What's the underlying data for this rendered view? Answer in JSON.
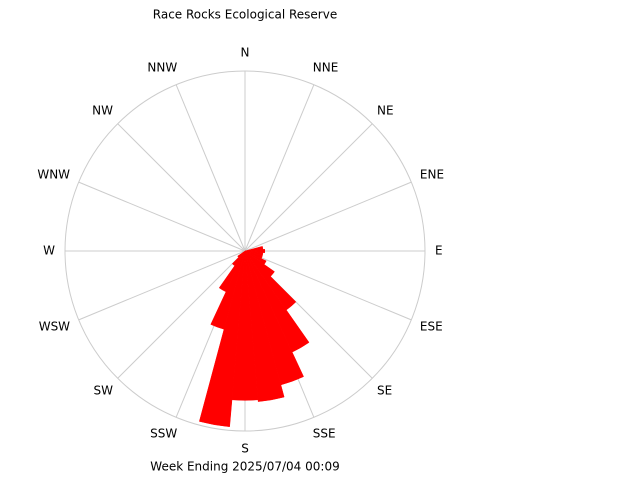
{
  "chart_data": {
    "type": "windrose",
    "title": "Race Rocks Ecological Reserve",
    "footer": "Week Ending 2025/07/04 00:09",
    "directions": [
      "N",
      "NNE",
      "NE",
      "ENE",
      "E",
      "ESE",
      "SE",
      "SSE",
      "S",
      "SSW",
      "SW",
      "WSW",
      "W",
      "WNW",
      "NW",
      "NNW"
    ],
    "x": [
      0,
      10,
      20,
      30,
      40,
      50,
      60,
      70,
      80,
      90,
      100,
      110,
      120,
      130,
      140,
      150,
      160,
      170,
      180,
      190,
      200,
      210,
      220,
      230,
      240,
      250,
      260,
      270,
      280,
      290,
      300,
      310,
      320,
      330,
      340,
      350
    ],
    "values": [
      0,
      0,
      0,
      0,
      0,
      0,
      0,
      0,
      10,
      11,
      10,
      10,
      13,
      20,
      40,
      62,
      77,
      84,
      83,
      98,
      45,
      25,
      10,
      5,
      0,
      0,
      0,
      0,
      0,
      0,
      0,
      0,
      0,
      0,
      0,
      0
    ],
    "color": "#ff0000",
    "rlim": [
      0,
      100
    ]
  }
}
